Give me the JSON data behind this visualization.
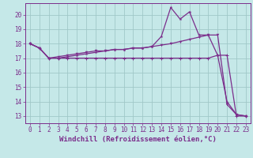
{
  "xlabel": "Windchill (Refroidissement éolien,°C)",
  "xlim": [
    -0.5,
    23.5
  ],
  "ylim": [
    12.5,
    20.8
  ],
  "yticks": [
    13,
    14,
    15,
    16,
    17,
    18,
    19,
    20
  ],
  "xticks": [
    0,
    1,
    2,
    3,
    4,
    5,
    6,
    7,
    8,
    9,
    10,
    11,
    12,
    13,
    14,
    15,
    16,
    17,
    18,
    19,
    20,
    21,
    22,
    23
  ],
  "bg_color": "#c5e8e8",
  "grid_color": "#a0c8c8",
  "line1_x": [
    0,
    1,
    2,
    3,
    4,
    5,
    6,
    7,
    8,
    9,
    10,
    11,
    12,
    13,
    14,
    15,
    16,
    17,
    18,
    19,
    20,
    21,
    22,
    23
  ],
  "line1_y": [
    18.0,
    17.7,
    17.0,
    17.0,
    17.1,
    17.2,
    17.3,
    17.4,
    17.5,
    17.6,
    17.6,
    17.7,
    17.7,
    17.8,
    18.5,
    20.5,
    19.7,
    20.2,
    18.6,
    18.6,
    17.2,
    14.0,
    13.1,
    13.0
  ],
  "line2_x": [
    0,
    1,
    2,
    3,
    4,
    5,
    6,
    7,
    8,
    9,
    10,
    11,
    12,
    13,
    14,
    15,
    16,
    17,
    18,
    19,
    20,
    21,
    22,
    23
  ],
  "line2_y": [
    18.0,
    17.7,
    17.0,
    17.1,
    17.2,
    17.3,
    17.4,
    17.5,
    17.5,
    17.6,
    17.6,
    17.7,
    17.7,
    17.8,
    17.9,
    18.0,
    18.15,
    18.3,
    18.45,
    18.6,
    18.6,
    13.8,
    13.1,
    13.0
  ],
  "line3_x": [
    0,
    1,
    2,
    3,
    4,
    5,
    6,
    7,
    8,
    9,
    10,
    11,
    12,
    13,
    14,
    15,
    16,
    17,
    18,
    19,
    20,
    21,
    22,
    23
  ],
  "line3_y": [
    18.0,
    17.7,
    17.0,
    17.0,
    17.0,
    17.0,
    17.0,
    17.0,
    17.0,
    17.0,
    17.0,
    17.0,
    17.0,
    17.0,
    17.0,
    17.0,
    17.0,
    17.0,
    17.0,
    17.0,
    17.2,
    17.2,
    13.0,
    13.0
  ],
  "line_color": "#7b2d8b",
  "line_color2": "#8b3a9b",
  "marker_size": 2.5,
  "line_width": 0.9,
  "tick_fontsize": 5.5,
  "xlabel_fontsize": 6.5
}
